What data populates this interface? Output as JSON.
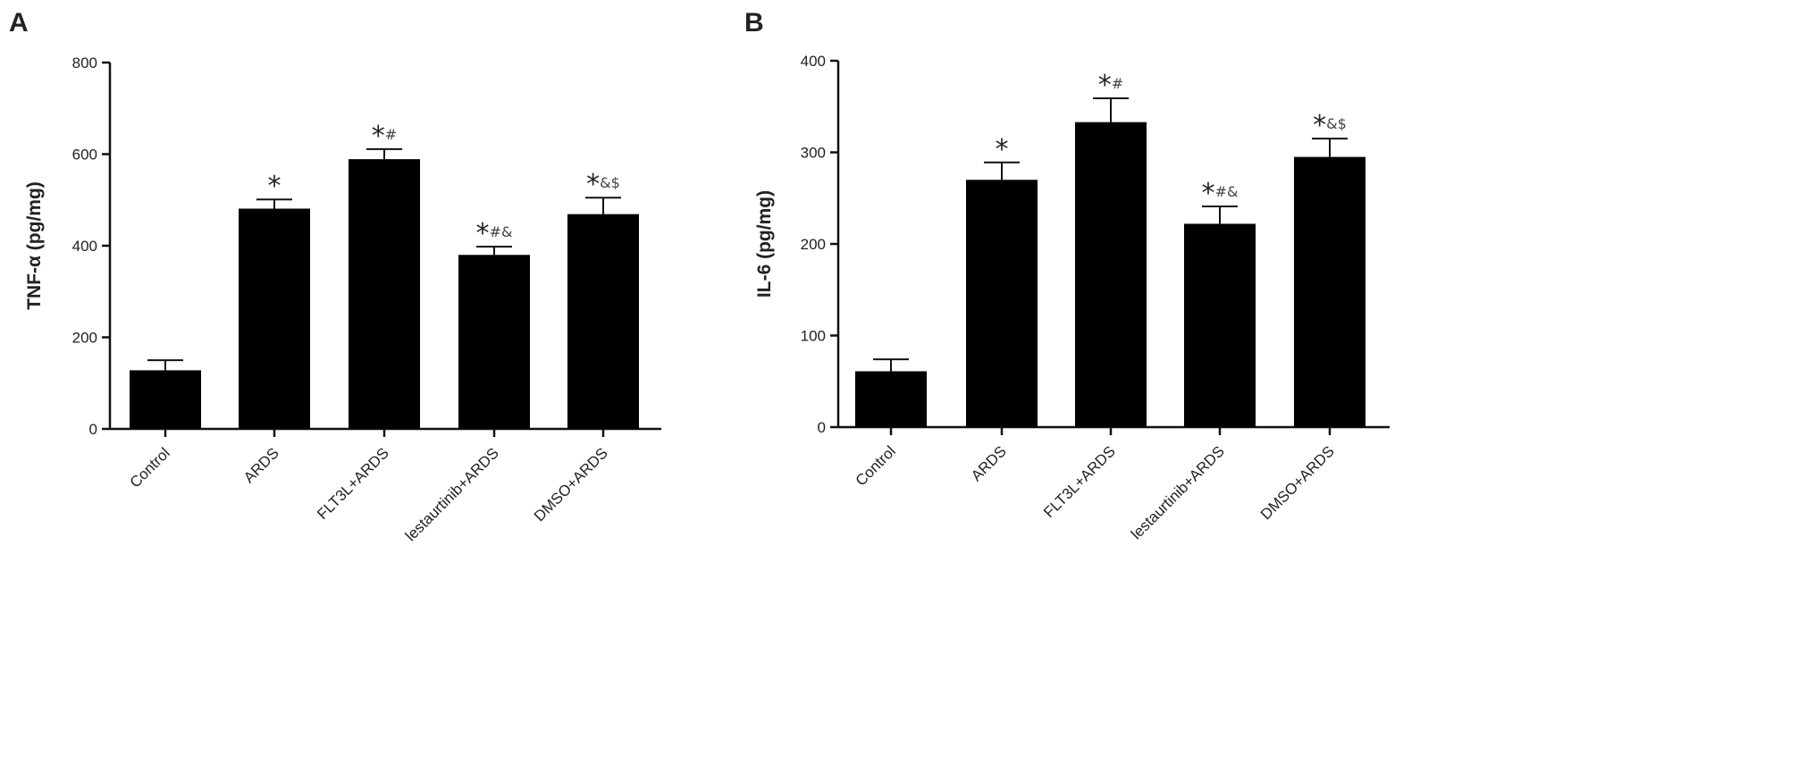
{
  "chart_data": [
    {
      "type": "bar",
      "panel": "A",
      "ylabel": "TNF-α (pg/mg)",
      "xlabel": "",
      "categories": [
        "Control",
        "ARDS",
        "FLT3L+ARDS",
        "lestaurtinib+ARDS",
        "DMSO+ARDS"
      ],
      "values": [
        128,
        481,
        589,
        380,
        469
      ],
      "errors": [
        22,
        20,
        22,
        18,
        36
      ],
      "significance": [
        "",
        "*",
        "*#",
        "*#&",
        "*&$"
      ],
      "ylim": [
        0,
        800
      ],
      "yticks": [
        0,
        200,
        400,
        600,
        800
      ],
      "bar_color": "#000000",
      "grid": false
    },
    {
      "type": "bar",
      "panel": "B",
      "ylabel": "IL-6 (pg/mg)",
      "xlabel": "",
      "categories": [
        "Control",
        "ARDS",
        "FLT3L+ARDS",
        "lestaurtinib+ARDS",
        "DMSO+ARDS"
      ],
      "values": [
        61,
        270,
        333,
        222,
        295
      ],
      "errors": [
        13,
        19,
        26,
        19,
        20
      ],
      "significance": [
        "",
        "*",
        "*#",
        "*#&",
        "*&$"
      ],
      "ylim": [
        0,
        400
      ],
      "yticks": [
        0,
        100,
        200,
        300,
        400
      ],
      "bar_color": "#000000",
      "grid": false
    }
  ]
}
